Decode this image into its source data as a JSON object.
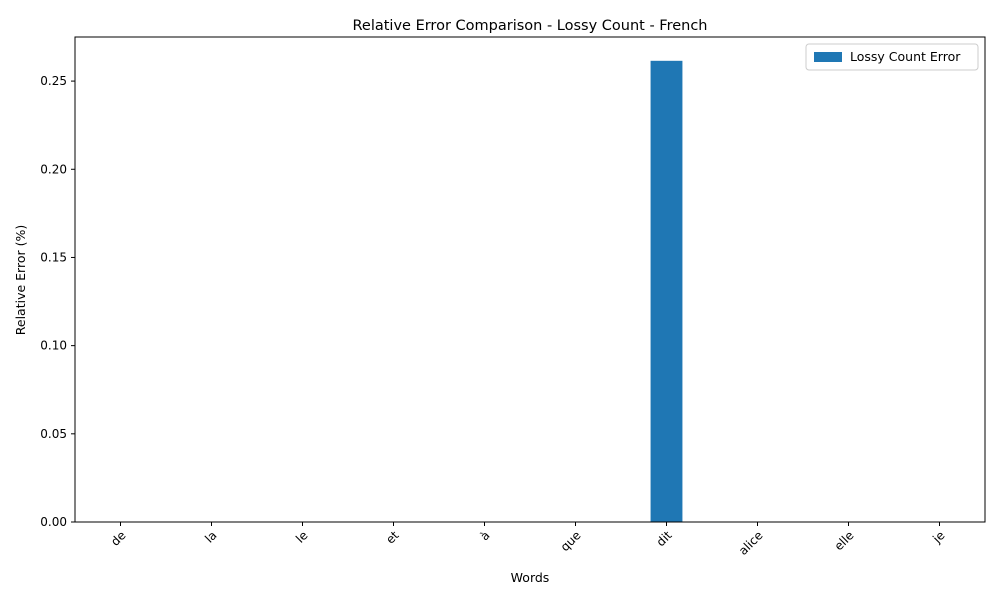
{
  "chart_data": {
    "type": "bar",
    "title": "Relative Error Comparison - Lossy Count - French",
    "xlabel": "Words",
    "ylabel": "Relative Error (%)",
    "categories": [
      "de",
      "la",
      "le",
      "et",
      "à",
      "que",
      "dit",
      "alice",
      "elle",
      "je"
    ],
    "series": [
      {
        "name": "Lossy Count Error",
        "values": [
          0,
          0,
          0,
          0,
          0,
          0,
          0.2615,
          0,
          0,
          0
        ],
        "color": "#1f77b4"
      }
    ],
    "ylim": [
      0,
      0.275
    ],
    "yticks": [
      "0.00",
      "0.05",
      "0.10",
      "0.15",
      "0.20",
      "0.25"
    ],
    "ytick_values": [
      0,
      0.05,
      0.1,
      0.15,
      0.2,
      0.25
    ],
    "grid": false,
    "legend_position": "top-right"
  }
}
